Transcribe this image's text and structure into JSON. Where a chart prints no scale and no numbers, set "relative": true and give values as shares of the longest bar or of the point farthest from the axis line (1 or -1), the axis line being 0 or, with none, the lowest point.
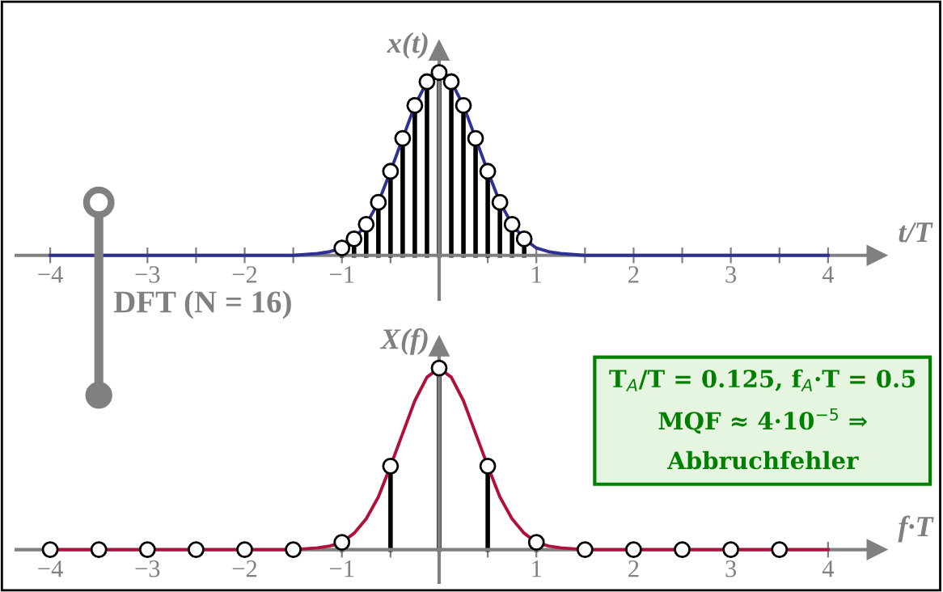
{
  "chart_data": [
    {
      "type": "line",
      "relative": true,
      "xlabel": "t/T",
      "ylabel": "x(t)",
      "xlim": [
        -4.35,
        4.5
      ],
      "xticks": [
        -4,
        {
          "value": -3.5,
          "label": null
        },
        -3,
        {
          "value": -2.5,
          "label": null
        },
        -2,
        {
          "value": -1.5,
          "label": null
        },
        -1,
        {
          "value": -0.5,
          "label": null
        },
        {
          "value": 0.5,
          "label": null
        },
        1,
        {
          "value": 1.5,
          "label": null
        },
        2,
        {
          "value": 2.5,
          "label": null
        },
        3,
        {
          "value": 3.5,
          "label": null
        },
        4
      ],
      "series": [
        {
          "type": "line",
          "color": "#2e3192",
          "x": [
            -4,
            -2,
            -1.5,
            -1.25,
            -1.125,
            -1,
            -0.875,
            -0.75,
            -0.625,
            -0.5,
            -0.375,
            -0.25,
            -0.125,
            0,
            0.125,
            0.25,
            0.375,
            0.5,
            0.625,
            0.75,
            0.875,
            1,
            1.125,
            1.25,
            1.5,
            2,
            4
          ],
          "values": [
            0,
            0,
            0,
            0.01,
            0.02,
            0.04,
            0.09,
            0.17,
            0.29,
            0.46,
            0.64,
            0.82,
            0.95,
            1.0,
            0.95,
            0.82,
            0.64,
            0.46,
            0.29,
            0.17,
            0.09,
            0.04,
            0.02,
            0.01,
            0,
            0,
            0
          ]
        },
        {
          "type": "lollipop",
          "color": "#000000",
          "marker": "circle",
          "x": [
            -1,
            -0.875,
            -0.75,
            -0.625,
            -0.5,
            -0.375,
            -0.25,
            -0.125,
            0,
            0.125,
            0.25,
            0.375,
            0.5,
            0.625,
            0.75,
            0.875
          ],
          "values": [
            0.04,
            0.09,
            0.17,
            0.29,
            0.46,
            0.64,
            0.82,
            0.95,
            1.0,
            0.95,
            0.82,
            0.64,
            0.46,
            0.29,
            0.17,
            0.09
          ]
        }
      ],
      "annotations": [
        "DFT (N = 16)"
      ]
    },
    {
      "type": "line",
      "relative": true,
      "xlabel": "f·T",
      "ylabel": "X(f)",
      "xlim": [
        -4.35,
        4.5
      ],
      "xticks": [
        -4,
        {
          "value": -3.5,
          "label": null
        },
        -3,
        {
          "value": -2.5,
          "label": null
        },
        -2,
        {
          "value": -1.5,
          "label": null
        },
        -1,
        {
          "value": -0.5,
          "label": null
        },
        {
          "value": 0.5,
          "label": null
        },
        1,
        {
          "value": 1.5,
          "label": null
        },
        2,
        {
          "value": 2.5,
          "label": null
        },
        3,
        {
          "value": 3.5,
          "label": null
        },
        4
      ],
      "series": [
        {
          "type": "line",
          "color": "#b0103a",
          "x": [
            -4,
            -2,
            -1.5,
            -1.25,
            -1.125,
            -1,
            -0.875,
            -0.75,
            -0.625,
            -0.5,
            -0.375,
            -0.25,
            -0.125,
            0,
            0.125,
            0.25,
            0.375,
            0.5,
            0.625,
            0.75,
            0.875,
            1,
            1.125,
            1.25,
            1.5,
            2,
            4
          ],
          "values": [
            0,
            0,
            0,
            0.01,
            0.02,
            0.04,
            0.09,
            0.17,
            0.29,
            0.46,
            0.64,
            0.82,
            0.95,
            1.0,
            0.95,
            0.82,
            0.64,
            0.46,
            0.29,
            0.17,
            0.09,
            0.04,
            0.02,
            0.01,
            0,
            0,
            0
          ]
        },
        {
          "type": "lollipop",
          "color": "#000000",
          "marker": "circle",
          "x": [
            -4,
            -3.5,
            -3,
            -2.5,
            -2,
            -1.5,
            -1,
            -0.5,
            0,
            0.5,
            1,
            1.5,
            2,
            2.5,
            3,
            3.5
          ],
          "values": [
            0,
            0,
            0,
            0,
            0,
            0,
            0.04,
            0.46,
            1.0,
            0.46,
            0.04,
            0,
            0,
            0,
            0,
            0
          ]
        }
      ],
      "annotations": [
        "T$_{A}$/T = 0.125, f$_{A}$·T = 0.5",
        "MQF ≈ 4·10$^{−5}$ ⇒",
        "Abbruchfehler"
      ]
    }
  ]
}
